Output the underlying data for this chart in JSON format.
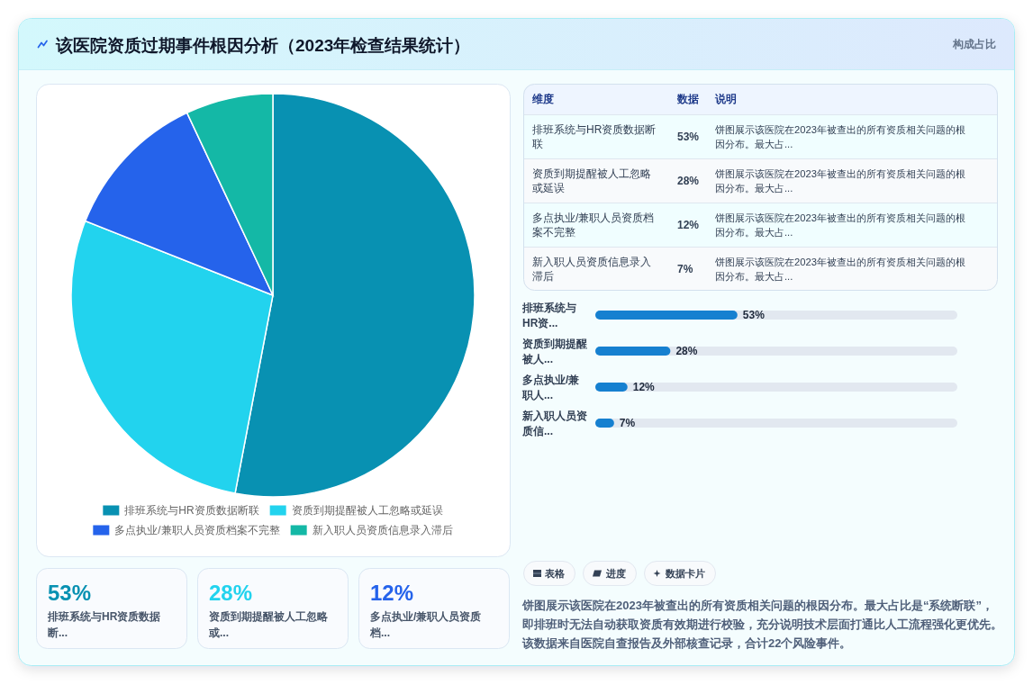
{
  "chart_data": [
    {
      "type": "other",
      "title": "该医院资质过期事件根因分析（2023年检查结果统计）",
      "subtitle": "构成占比"
    },
    {
      "type": "pie",
      "categories": [
        "排班系统与HR资质数据断联",
        "资质到期提醒被人工忽略或延误",
        "多点执业/兼职人员资质档案不完整",
        "新入职人员资质信息录入滞后"
      ],
      "values": [
        53,
        28,
        12,
        7
      ],
      "colors": [
        "#0891b2",
        "#22d3ee",
        "#2563eb",
        "#14b8a6"
      ],
      "legend": "bottom"
    },
    {
      "type": "other",
      "categories": [
        "排班系统与HR资质数据断联",
        "资质到期提醒被人工忽略或延误",
        "多点执业/兼职人员资质档案不完整",
        "新入职人员资质信息录入滞后"
      ],
      "value_labels": [
        "53%",
        "28%",
        "12%",
        "7%"
      ],
      "annotations": [
        "维度",
        "数据",
        "说明",
        "饼图展示该医院在2023年被查出的所有资质相关问题的根因分布。最大占...",
        "饼图展示该医院在2023年被查出的所有资质相关问题的根因分布。最大占...",
        "饼图展示该医院在2023年被查出的所有资质相关问题的根因分布。最大占...",
        "饼图展示该医院在2023年被查出的所有资质相关问题的根因分布。最大占..."
      ]
    },
    {
      "type": "bar",
      "orientation": "horizontal",
      "categories": [
        "排班系统与HR资...",
        "资质到期提醒被人...",
        "多点执业/兼职人...",
        "新入职人员资质信..."
      ],
      "values": [
        53,
        28,
        12,
        7
      ],
      "value_labels": [
        "53%",
        "28%",
        "12%",
        "7%"
      ],
      "color": "#1680d0",
      "xlim": [
        0,
        135
      ],
      "tick_labels": "y"
    },
    {
      "type": "other",
      "categories": [
        "排班系统与HR资质数据断...",
        "资质到期提醒被人工忽略或...",
        "多点执业/兼职人员资质档..."
      ],
      "value_labels": [
        "53%",
        "28%",
        "12%"
      ]
    },
    {
      "type": "other",
      "annotations": [
        "表格",
        "进度",
        "数据卡片",
        "饼图展示该医院在2023年被查出的所有资质相关问题的根因分布。最大占比是“系统断联”，即排班时无法自动获取资质有效期进行校验，充分说明技术层面打通比人工流程强化更优先。该数据来自医院自查报告及外部核查记录，合计22个风险事件。"
      ]
    }
  ]
}
